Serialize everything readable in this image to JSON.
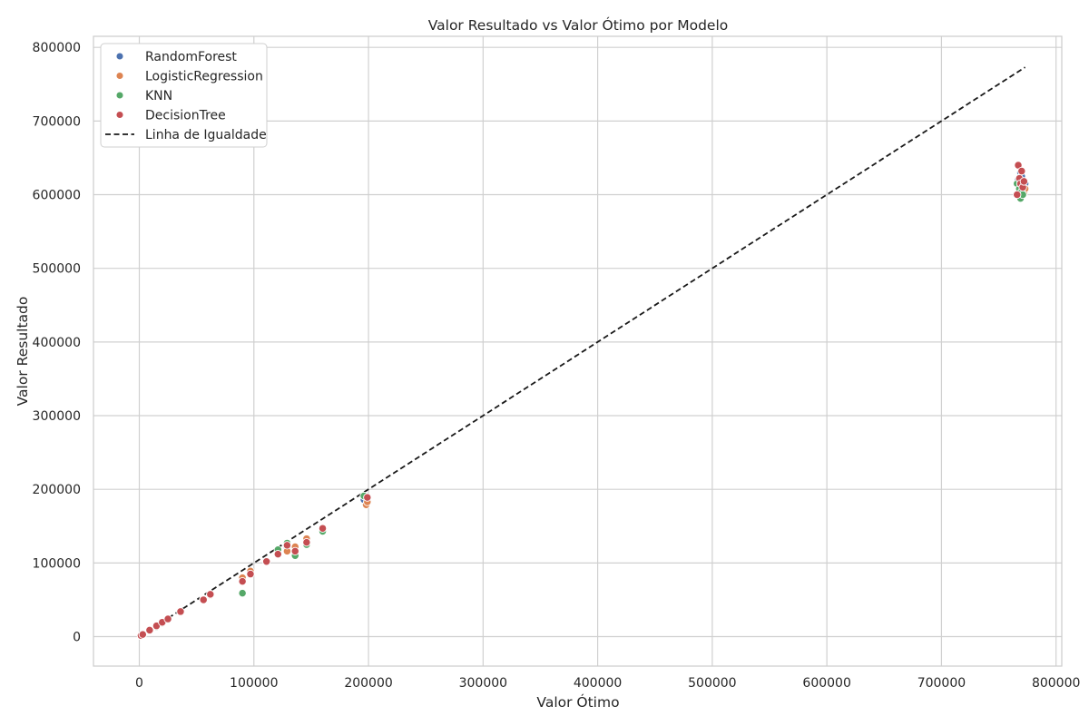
{
  "chart_data": {
    "type": "scatter",
    "title": "Valor Resultado vs Valor Ótimo por Modelo",
    "xlabel": "Valor Ótimo",
    "ylabel": "Valor Resultado",
    "xlim": [
      -40000,
      805000
    ],
    "ylim": [
      -40000,
      815000
    ],
    "x_ticks": [
      0,
      100000,
      200000,
      300000,
      400000,
      500000,
      600000,
      700000,
      800000
    ],
    "y_ticks": [
      0,
      100000,
      200000,
      300000,
      400000,
      500000,
      600000,
      700000,
      800000
    ],
    "grid": true,
    "legend_position": "top-left",
    "series": [
      {
        "name": "RandomForest",
        "color": "#4c72b0",
        "points": [
          [
            1500,
            1400
          ],
          [
            3000,
            2900
          ],
          [
            9000,
            8600
          ],
          [
            15000,
            14400
          ],
          [
            20000,
            19200
          ],
          [
            25000,
            23800
          ],
          [
            36000,
            33800
          ],
          [
            56000,
            51500
          ],
          [
            62000,
            57000
          ],
          [
            90000,
            77000
          ],
          [
            97000,
            86000
          ],
          [
            111000,
            102000
          ],
          [
            121000,
            114000
          ],
          [
            129000,
            121000
          ],
          [
            136000,
            118000
          ],
          [
            146000,
            130000
          ],
          [
            160000,
            146000
          ],
          [
            196000,
            186000
          ],
          [
            199000,
            187000
          ],
          [
            767000,
            620000
          ],
          [
            769000,
            630000
          ],
          [
            770000,
            625000
          ],
          [
            772000,
            612000
          ],
          [
            773000,
            615000
          ],
          [
            771000,
            605000
          ],
          [
            768000,
            600000
          ]
        ]
      },
      {
        "name": "LogisticRegression",
        "color": "#dd8452",
        "points": [
          [
            1500,
            1300
          ],
          [
            3000,
            2800
          ],
          [
            9000,
            8400
          ],
          [
            15000,
            14000
          ],
          [
            20000,
            18800
          ],
          [
            25000,
            23200
          ],
          [
            36000,
            33000
          ],
          [
            56000,
            51000
          ],
          [
            62000,
            56500
          ],
          [
            90000,
            80000
          ],
          [
            97000,
            89000
          ],
          [
            121000,
            116000
          ],
          [
            129000,
            116000
          ],
          [
            136000,
            122000
          ],
          [
            146000,
            133000
          ],
          [
            160000,
            145000
          ],
          [
            198000,
            179000
          ],
          [
            199000,
            183000
          ],
          [
            768000,
            618000
          ],
          [
            770000,
            598000
          ],
          [
            772000,
            603000
          ],
          [
            773000,
            608000
          ],
          [
            769000,
            612000
          ]
        ]
      },
      {
        "name": "KNN",
        "color": "#55a868",
        "points": [
          [
            1500,
            1200
          ],
          [
            3000,
            2500
          ],
          [
            9000,
            8000
          ],
          [
            15000,
            13500
          ],
          [
            20000,
            18500
          ],
          [
            25000,
            23000
          ],
          [
            56000,
            50500
          ],
          [
            90000,
            59000
          ],
          [
            121000,
            118000
          ],
          [
            129000,
            127000
          ],
          [
            136000,
            110000
          ],
          [
            146000,
            125000
          ],
          [
            160000,
            143000
          ],
          [
            196000,
            191000
          ],
          [
            766000,
            615000
          ],
          [
            768000,
            608000
          ],
          [
            769000,
            595000
          ],
          [
            770000,
            604000
          ],
          [
            771000,
            600000
          ]
        ]
      },
      {
        "name": "DecisionTree",
        "color": "#c44e52",
        "points": [
          [
            1500,
            1450
          ],
          [
            3000,
            2950
          ],
          [
            9000,
            8800
          ],
          [
            15000,
            14600
          ],
          [
            20000,
            19500
          ],
          [
            25000,
            24000
          ],
          [
            36000,
            34000
          ],
          [
            56000,
            50000
          ],
          [
            62000,
            57500
          ],
          [
            90000,
            75000
          ],
          [
            97000,
            85000
          ],
          [
            111000,
            102000
          ],
          [
            121000,
            112000
          ],
          [
            129000,
            124000
          ],
          [
            136000,
            116000
          ],
          [
            146000,
            128000
          ],
          [
            160000,
            147000
          ],
          [
            199000,
            189000
          ],
          [
            767000,
            640000
          ],
          [
            770000,
            632000
          ],
          [
            768000,
            622000
          ],
          [
            769000,
            615000
          ],
          [
            771000,
            610000
          ],
          [
            766000,
            600000
          ],
          [
            772000,
            618000
          ]
        ]
      },
      {
        "name": "Linha de Igualdade",
        "color": "#1a1a1a",
        "style": "dashed",
        "line": [
          [
            0,
            0
          ],
          [
            773000,
            773000
          ]
        ]
      }
    ]
  }
}
